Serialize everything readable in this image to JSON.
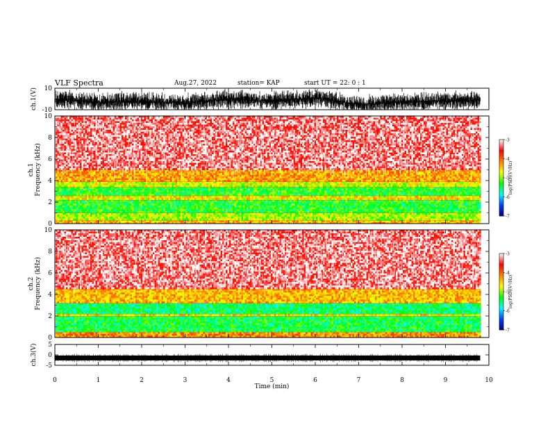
{
  "header": {
    "title": "VLF Spectra",
    "date": "Aug.27, 2022",
    "station": "station= KAP",
    "start_ut": "start  UT  =   22: 0  : 1"
  },
  "colors": {
    "spectrum_scale": [
      "#000080",
      "#0040ff",
      "#00ffff",
      "#00ff00",
      "#ffff00",
      "#ff8000",
      "#ff0000",
      "#ffffff"
    ],
    "trace": "#000000"
  },
  "chart_data": [
    {
      "type": "line",
      "name": "ch1-waveform",
      "ylabel": "ch.1(V)",
      "ylim": [
        -10,
        10
      ],
      "yticks": [
        "10",
        "-10"
      ],
      "xlim": [
        0,
        10
      ],
      "envelope_note_range_min": [
        0,
        9.8
      ],
      "series": [
        {
          "x": [
            0,
            1,
            2,
            3,
            4,
            5,
            6,
            7,
            8,
            9,
            9.8
          ],
          "values": [
            0,
            -3,
            -2,
            -4,
            0,
            -2,
            1,
            -5,
            -3,
            -2,
            -1
          ]
        }
      ]
    },
    {
      "type": "heatmap",
      "name": "ch1-spectrogram",
      "ylabel": "ch.1\nFrequency  (kHz)",
      "ylim": [
        0,
        10
      ],
      "yticks": [
        "0",
        "2",
        "4",
        "6",
        "8",
        "10"
      ],
      "xlim": [
        0,
        10
      ],
      "data_extent_min": 9.8,
      "colorbar": {
        "label": "log(PSD)(V²/Hz)",
        "range": [
          -7,
          -3
        ],
        "ticks": [
          "-3",
          "-4",
          "-5",
          "-6",
          "-7"
        ]
      },
      "bands_khz": [
        {
          "from": 0.0,
          "to": 0.3,
          "level": -4.4
        },
        {
          "from": 0.3,
          "to": 1.0,
          "level": -4.9
        },
        {
          "from": 1.0,
          "to": 2.2,
          "level": -5.3
        },
        {
          "from": 2.2,
          "to": 2.6,
          "level": -4.6
        },
        {
          "from": 2.6,
          "to": 3.4,
          "level": -5.3
        },
        {
          "from": 3.4,
          "to": 3.9,
          "level": -4.8
        },
        {
          "from": 3.9,
          "to": 5.0,
          "level": -4.3
        },
        {
          "from": 5.0,
          "to": 10.0,
          "level": -3.3
        }
      ]
    },
    {
      "type": "heatmap",
      "name": "ch2-spectrogram",
      "ylabel": "ch.2\nFrequency  (kHz)",
      "ylim": [
        0,
        10
      ],
      "yticks": [
        "0",
        "2",
        "4",
        "6",
        "8",
        "10"
      ],
      "xlim": [
        0,
        10
      ],
      "data_extent_min": 9.8,
      "colorbar": {
        "label": "log(PSD)(V²/Hz)",
        "range": [
          -7,
          -3
        ],
        "ticks": [
          "-3",
          "-4",
          "-5",
          "-6",
          "-7"
        ]
      },
      "bands_khz": [
        {
          "from": 0.0,
          "to": 0.5,
          "level": -4.2
        },
        {
          "from": 0.5,
          "to": 2.0,
          "level": -5.4
        },
        {
          "from": 2.0,
          "to": 2.2,
          "level": -4.6
        },
        {
          "from": 2.2,
          "to": 3.2,
          "level": -5.5
        },
        {
          "from": 3.2,
          "to": 4.5,
          "level": -4.4
        },
        {
          "from": 4.5,
          "to": 10.0,
          "level": -3.3
        }
      ]
    },
    {
      "type": "line",
      "name": "ch3-waveform",
      "ylabel": "ch.3(V)",
      "ylim": [
        -5,
        5
      ],
      "yticks": [
        "5",
        "0",
        "-5"
      ],
      "xlim": [
        0,
        10
      ],
      "series": [
        {
          "x": [
            0,
            9.8
          ],
          "values": [
            -1.5,
            -1.5
          ]
        }
      ]
    }
  ],
  "xaxis": {
    "label": "Time  (min)",
    "ticks": [
      "0",
      "1",
      "2",
      "3",
      "4",
      "5",
      "6",
      "7",
      "8",
      "9",
      "10"
    ]
  }
}
